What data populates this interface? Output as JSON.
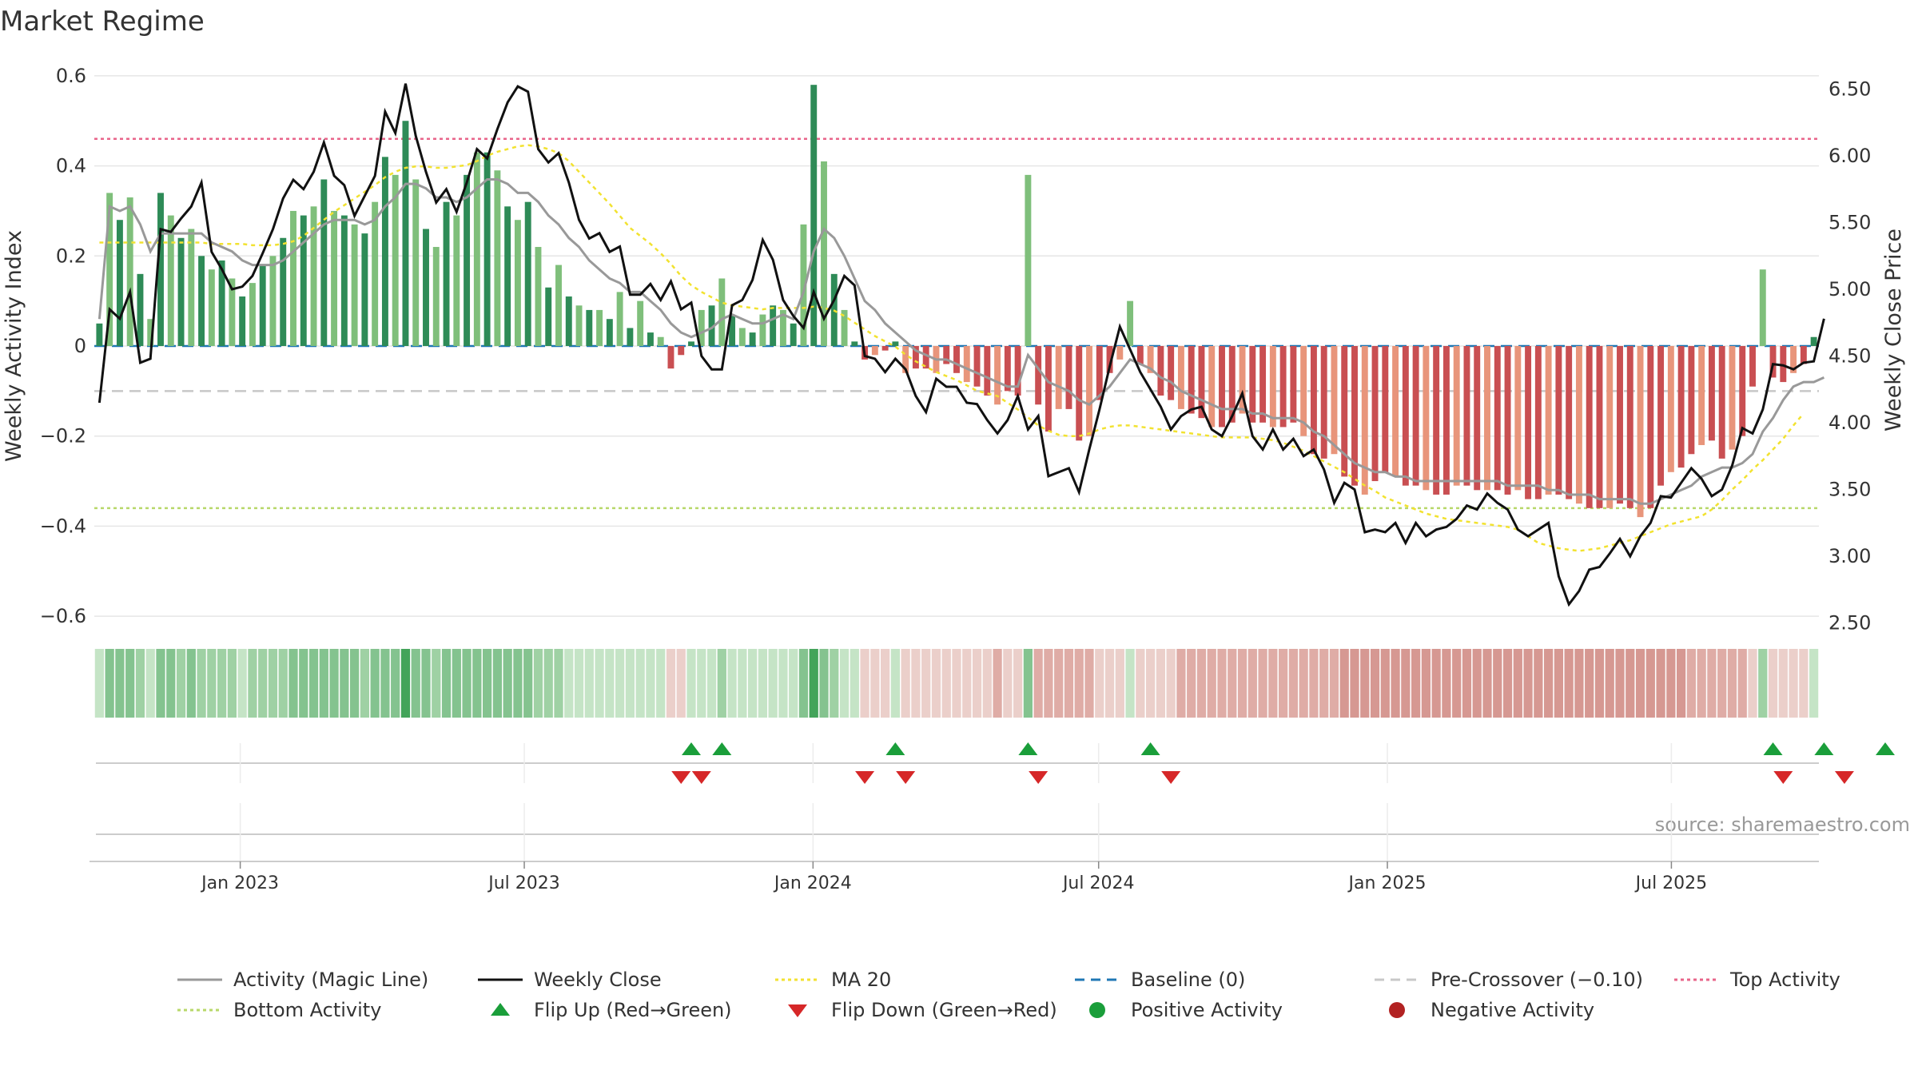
{
  "chart_data": {
    "type": "bar",
    "title": "Market Regime",
    "source": "source: sharemaestro.com",
    "ylabel": "Weekly Activity Index",
    "y2label": "Weekly Close Price",
    "ylim": [
      -0.63,
      0.63
    ],
    "y2lim": [
      2.45,
      6.7
    ],
    "yticks": [
      -0.6,
      -0.4,
      -0.2,
      0,
      0.2,
      0.4,
      0.6
    ],
    "ytick_labels": [
      "−0.6",
      "−0.4",
      "−0.2",
      "0",
      "0.2",
      "0.4",
      "0.6"
    ],
    "y2ticks": [
      2.5,
      3.0,
      3.5,
      4.0,
      4.5,
      5.0,
      5.5,
      6.0,
      6.5
    ],
    "y2tick_labels": [
      "2.50",
      "3.00",
      "3.50",
      "4.00",
      "4.50",
      "5.00",
      "5.50",
      "6.00",
      "6.50"
    ],
    "x_start": "2022-09-30",
    "x_end": "2025-10-03",
    "xticks": [
      "2023-01-01",
      "2023-07-01",
      "2024-01-01",
      "2024-07-01",
      "2025-01-01",
      "2025-07-01"
    ],
    "xtick_labels": [
      "Jan 2023",
      "Jul 2023",
      "Jan 2024",
      "Jul 2024",
      "Jan 2025",
      "Jul 2025"
    ],
    "reference_lines": {
      "top": 0.46,
      "bottom": -0.36,
      "pre_crossover": -0.1,
      "baseline": 0
    },
    "colors": {
      "pos_strong": "#2e8b57",
      "pos_light": "#7fbf7b",
      "neg_strong": "#c94f52",
      "neg_light": "#e8957b",
      "magic": "#999999",
      "close": "#111111",
      "ma20": "#f2e230",
      "baseline": "#1f77b4",
      "pre": "#c8c8c8",
      "top": "#e8648a",
      "bottom": "#b8d86a",
      "flip_up": "#1a9e3a",
      "flip_down": "#d62728",
      "pos_dot": "#1a9e3a",
      "neg_dot": "#b22222"
    },
    "series": [
      {
        "name": "Weekly Activity",
        "values": [
          0.05,
          0.34,
          0.28,
          0.33,
          0.16,
          0.06,
          0.34,
          0.29,
          0.24,
          0.26,
          0.2,
          0.17,
          0.19,
          0.15,
          0.11,
          0.14,
          0.18,
          0.2,
          0.24,
          0.3,
          0.29,
          0.31,
          0.37,
          0.3,
          0.29,
          0.27,
          0.25,
          0.32,
          0.42,
          0.38,
          0.5,
          0.37,
          0.26,
          0.22,
          0.32,
          0.29,
          0.38,
          0.43,
          0.43,
          0.39,
          0.31,
          0.28,
          0.32,
          0.22,
          0.13,
          0.18,
          0.11,
          0.09,
          0.08,
          0.08,
          0.06,
          0.12,
          0.04,
          0.1,
          0.03,
          0.02,
          -0.05,
          -0.02,
          0.01,
          0.08,
          0.09,
          0.15,
          0.07,
          0.04,
          0.03,
          0.07,
          0.09,
          0.08,
          0.05,
          0.27,
          0.58,
          0.41,
          0.16,
          0.08,
          0.01,
          -0.03,
          -0.02,
          -0.01,
          0.01,
          -0.06,
          -0.05,
          -0.05,
          -0.06,
          -0.04,
          -0.06,
          -0.08,
          -0.09,
          -0.11,
          -0.13,
          -0.1,
          -0.11,
          0.38,
          -0.13,
          -0.19,
          -0.14,
          -0.14,
          -0.21,
          -0.2,
          -0.12,
          -0.06,
          -0.03,
          0.1,
          -0.04,
          -0.06,
          -0.11,
          -0.12,
          -0.14,
          -0.15,
          -0.16,
          -0.18,
          -0.18,
          -0.17,
          -0.15,
          -0.17,
          -0.17,
          -0.18,
          -0.18,
          -0.17,
          -0.2,
          -0.24,
          -0.25,
          -0.24,
          -0.29,
          -0.31,
          -0.33,
          -0.3,
          -0.28,
          -0.29,
          -0.31,
          -0.31,
          -0.32,
          -0.33,
          -0.33,
          -0.31,
          -0.31,
          -0.32,
          -0.32,
          -0.32,
          -0.33,
          -0.32,
          -0.34,
          -0.34,
          -0.33,
          -0.33,
          -0.34,
          -0.35,
          -0.36,
          -0.36,
          -0.36,
          -0.35,
          -0.36,
          -0.38,
          -0.36,
          -0.31,
          -0.28,
          -0.27,
          -0.24,
          -0.22,
          -0.21,
          -0.25,
          -0.23,
          -0.2,
          -0.09,
          0.17,
          -0.07,
          -0.08,
          -0.06,
          -0.04,
          0.02
        ]
      },
      {
        "name": "Activity (Magic Line)",
        "values": [
          0.06,
          0.31,
          0.3,
          0.31,
          0.27,
          0.21,
          0.25,
          0.25,
          0.25,
          0.25,
          0.25,
          0.23,
          0.22,
          0.21,
          0.19,
          0.18,
          0.18,
          0.18,
          0.19,
          0.21,
          0.23,
          0.25,
          0.27,
          0.28,
          0.28,
          0.28,
          0.27,
          0.28,
          0.31,
          0.33,
          0.36,
          0.36,
          0.35,
          0.33,
          0.33,
          0.32,
          0.33,
          0.35,
          0.37,
          0.37,
          0.36,
          0.34,
          0.34,
          0.32,
          0.29,
          0.27,
          0.24,
          0.22,
          0.19,
          0.17,
          0.15,
          0.14,
          0.12,
          0.12,
          0.1,
          0.08,
          0.05,
          0.03,
          0.02,
          0.03,
          0.04,
          0.06,
          0.07,
          0.06,
          0.05,
          0.05,
          0.06,
          0.07,
          0.06,
          0.12,
          0.21,
          0.26,
          0.24,
          0.2,
          0.15,
          0.1,
          0.08,
          0.05,
          0.03,
          0.01,
          -0.01,
          -0.02,
          -0.03,
          -0.03,
          -0.04,
          -0.05,
          -0.06,
          -0.07,
          -0.08,
          -0.09,
          -0.09,
          -0.02,
          -0.05,
          -0.08,
          -0.09,
          -0.1,
          -0.12,
          -0.13,
          -0.11,
          -0.09,
          -0.06,
          -0.03,
          -0.04,
          -0.05,
          -0.07,
          -0.08,
          -0.1,
          -0.11,
          -0.12,
          -0.13,
          -0.14,
          -0.14,
          -0.14,
          -0.15,
          -0.15,
          -0.16,
          -0.16,
          -0.16,
          -0.17,
          -0.19,
          -0.2,
          -0.22,
          -0.24,
          -0.26,
          -0.27,
          -0.28,
          -0.28,
          -0.29,
          -0.29,
          -0.3,
          -0.3,
          -0.3,
          -0.3,
          -0.3,
          -0.3,
          -0.3,
          -0.3,
          -0.3,
          -0.31,
          -0.31,
          -0.31,
          -0.31,
          -0.32,
          -0.32,
          -0.33,
          -0.33,
          -0.33,
          -0.34,
          -0.34,
          -0.34,
          -0.34,
          -0.35,
          -0.35,
          -0.34,
          -0.33,
          -0.32,
          -0.31,
          -0.29,
          -0.28,
          -0.27,
          -0.27,
          -0.26,
          -0.24,
          -0.19,
          -0.16,
          -0.12,
          -0.09,
          -0.08,
          -0.08,
          -0.07
        ]
      },
      {
        "name": "Weekly Close",
        "values": [
          4.15,
          4.85,
          4.78,
          4.98,
          4.45,
          4.48,
          5.45,
          5.43,
          5.53,
          5.62,
          5.8,
          5.28,
          5.15,
          5.0,
          5.02,
          5.1,
          5.27,
          5.45,
          5.68,
          5.82,
          5.75,
          5.88,
          6.1,
          5.85,
          5.78,
          5.55,
          5.7,
          5.85,
          6.33,
          6.17,
          6.54,
          6.15,
          5.88,
          5.65,
          5.75,
          5.58,
          5.8,
          6.05,
          5.98,
          6.2,
          6.4,
          6.52,
          6.48,
          6.05,
          5.95,
          6.02,
          5.8,
          5.52,
          5.38,
          5.42,
          5.28,
          5.32,
          4.96,
          4.96,
          5.04,
          4.92,
          5.06,
          4.85,
          4.9,
          4.5,
          4.4,
          4.4,
          4.88,
          4.92,
          5.07,
          5.37,
          5.22,
          4.92,
          4.8,
          4.71,
          4.98,
          4.78,
          4.92,
          5.1,
          5.03,
          4.5,
          4.48,
          4.38,
          4.48,
          4.4,
          4.2,
          4.08,
          4.33,
          4.27,
          4.27,
          4.15,
          4.14,
          4.02,
          3.92,
          4.02,
          4.2,
          3.95,
          4.05,
          3.6,
          3.63,
          3.66,
          3.48,
          3.8,
          4.1,
          4.42,
          4.72,
          4.55,
          4.38,
          4.25,
          4.12,
          3.95,
          4.05,
          4.1,
          4.12,
          3.95,
          3.9,
          4.05,
          4.22,
          3.9,
          3.8,
          3.95,
          3.8,
          3.88,
          3.75,
          3.8,
          3.65,
          3.4,
          3.55,
          3.5,
          3.18,
          3.2,
          3.18,
          3.25,
          3.1,
          3.25,
          3.15,
          3.2,
          3.22,
          3.28,
          3.38,
          3.35,
          3.47,
          3.4,
          3.35,
          3.2,
          3.15,
          3.2,
          3.25,
          2.85,
          2.64,
          2.74,
          2.9,
          2.92,
          3.02,
          3.13,
          3.0,
          3.15,
          3.25,
          3.45,
          3.44,
          3.55,
          3.66,
          3.58,
          3.45,
          3.5,
          3.68,
          3.96,
          3.92,
          4.1,
          4.44,
          4.43,
          4.4,
          4.45,
          4.46,
          4.78
        ]
      },
      {
        "name": "MA 20",
        "values": [
          5.35,
          5.35,
          5.35,
          5.35,
          5.35,
          5.35,
          5.35,
          5.35,
          5.35,
          5.35,
          5.35,
          5.34,
          5.34,
          5.34,
          5.34,
          5.33,
          5.33,
          5.33,
          5.34,
          5.36,
          5.4,
          5.46,
          5.52,
          5.58,
          5.63,
          5.68,
          5.73,
          5.78,
          5.84,
          5.88,
          5.91,
          5.92,
          5.92,
          5.91,
          5.91,
          5.92,
          5.93,
          5.96,
          6.0,
          6.03,
          6.05,
          6.07,
          6.08,
          6.07,
          6.05,
          6.02,
          5.96,
          5.88,
          5.8,
          5.72,
          5.64,
          5.55,
          5.46,
          5.4,
          5.34,
          5.27,
          5.19,
          5.1,
          5.03,
          4.98,
          4.94,
          4.9,
          4.88,
          4.87,
          4.86,
          4.85,
          4.86,
          4.86,
          4.86,
          4.86,
          4.87,
          4.86,
          4.84,
          4.8,
          4.75,
          4.7,
          4.65,
          4.61,
          4.57,
          4.51,
          4.46,
          4.42,
          4.38,
          4.35,
          4.32,
          4.28,
          4.24,
          4.22,
          4.2,
          4.15,
          4.1,
          4.04,
          3.98,
          3.94,
          3.91,
          3.9,
          3.9,
          3.92,
          3.95,
          3.97,
          3.98,
          3.98,
          3.97,
          3.96,
          3.95,
          3.94,
          3.93,
          3.92,
          3.91,
          3.9,
          3.89,
          3.89,
          3.89,
          3.89,
          3.88,
          3.87,
          3.85,
          3.82,
          3.79,
          3.75,
          3.71,
          3.67,
          3.63,
          3.58,
          3.53,
          3.49,
          3.44,
          3.41,
          3.38,
          3.35,
          3.32,
          3.3,
          3.28,
          3.27,
          3.26,
          3.25,
          3.24,
          3.23,
          3.22,
          3.2,
          3.15,
          3.1,
          3.08,
          3.06,
          3.05,
          3.04,
          3.05,
          3.06,
          3.08,
          3.1,
          3.12,
          3.15,
          3.18,
          3.21,
          3.24,
          3.26,
          3.28,
          3.3,
          3.35,
          3.42,
          3.5,
          3.57,
          3.65,
          3.72,
          3.8,
          3.88,
          3.98,
          4.07
        ]
      }
    ],
    "flips_up_weeks": [
      58,
      61,
      78,
      91,
      103,
      164,
      169,
      175
    ],
    "flips_down_weeks": [
      57,
      59,
      75,
      79,
      92,
      105,
      165,
      171
    ],
    "legend": [
      {
        "label": "Activity (Magic Line)",
        "kind": "line",
        "color": "#999999",
        "dash": ""
      },
      {
        "label": "Weekly Close",
        "kind": "line",
        "color": "#111111",
        "dash": ""
      },
      {
        "label": "MA 20",
        "kind": "line",
        "color": "#f2e230",
        "dash": "4,4"
      },
      {
        "label": "Baseline (0)",
        "kind": "line",
        "color": "#1f77b4",
        "dash": "12,8"
      },
      {
        "label": "Pre-Crossover (−0.10)",
        "kind": "line",
        "color": "#c8c8c8",
        "dash": "12,8"
      },
      {
        "label": "Top Activity",
        "kind": "line",
        "color": "#e8648a",
        "dash": "4,4"
      },
      {
        "label": "Bottom Activity",
        "kind": "line",
        "color": "#b8d86a",
        "dash": "4,4"
      },
      {
        "label": "Flip Up (Red→Green)",
        "kind": "tri-up",
        "color": "#1a9e3a",
        "dash": ""
      },
      {
        "label": "Flip Down (Green→Red)",
        "kind": "tri-down",
        "color": "#d62728",
        "dash": ""
      },
      {
        "label": "Positive Activity",
        "kind": "dot",
        "color": "#1a9e3a",
        "dash": ""
      },
      {
        "label": "Negative Activity",
        "kind": "dot",
        "color": "#b22222",
        "dash": ""
      }
    ]
  }
}
